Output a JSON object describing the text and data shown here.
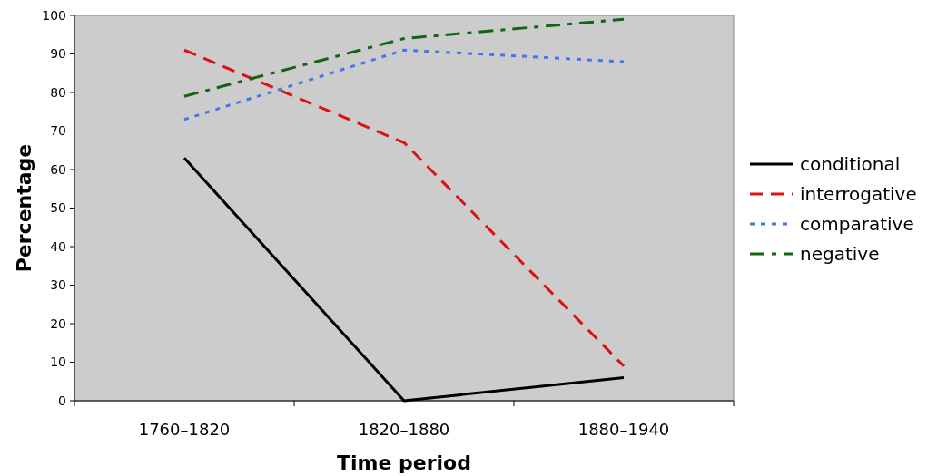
{
  "chart_data": {
    "type": "line",
    "xlabel": "Time period",
    "ylabel": "Percentage",
    "categories": [
      "1760–1820",
      "1820–1880",
      "1880–1940"
    ],
    "ylim": [
      0,
      100
    ],
    "yticks": [
      0,
      10,
      20,
      30,
      40,
      50,
      60,
      70,
      80,
      90,
      100
    ],
    "legend": "right",
    "grid": false,
    "marker": "none",
    "series": [
      {
        "name": "conditional",
        "color": "#000000",
        "line_style": "solid",
        "values": [
          63,
          0,
          6
        ]
      },
      {
        "name": "interrogative",
        "color": "#dd1111",
        "line_style": "dashed",
        "values": [
          91,
          67,
          9
        ]
      },
      {
        "name": "comparative",
        "color": "#4477ee",
        "line_style": "dotted",
        "values": [
          73,
          91,
          88
        ]
      },
      {
        "name": "negative",
        "color": "#116611",
        "line_style": "dashdot",
        "values": [
          79,
          94,
          99
        ]
      }
    ]
  }
}
